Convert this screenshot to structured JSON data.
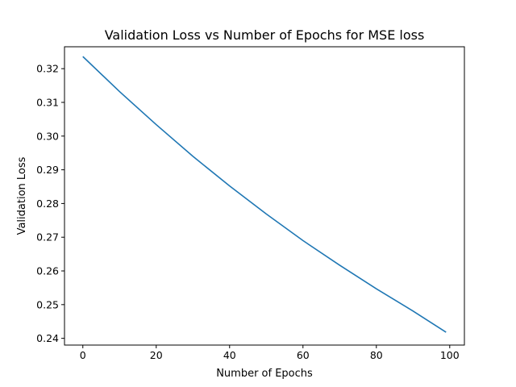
{
  "chart_data": {
    "type": "line",
    "title": "Validation Loss vs Number of Epochs for MSE loss",
    "xlabel": "Number of Epochs",
    "ylabel": "Validation Loss",
    "xlim": [
      -5,
      104
    ],
    "ylim": [
      0.238,
      0.3265
    ],
    "xticks": [
      0,
      20,
      40,
      60,
      80,
      100
    ],
    "xtick_labels": [
      "0",
      "20",
      "40",
      "60",
      "80",
      "100"
    ],
    "yticks": [
      0.24,
      0.25,
      0.26,
      0.27,
      0.28,
      0.29,
      0.3,
      0.31,
      0.32
    ],
    "ytick_labels": [
      "0.24",
      "0.25",
      "0.26",
      "0.27",
      "0.28",
      "0.29",
      "0.30",
      "0.31",
      "0.32"
    ],
    "grid": false,
    "series": [
      {
        "color": "#1f77b4",
        "x": [
          0,
          10,
          20,
          30,
          40,
          50,
          60,
          70,
          80,
          90,
          99
        ],
        "y": [
          0.3236,
          0.3132,
          0.3034,
          0.294,
          0.2852,
          0.2769,
          0.269,
          0.2617,
          0.2547,
          0.2481,
          0.2418
        ]
      }
    ]
  }
}
